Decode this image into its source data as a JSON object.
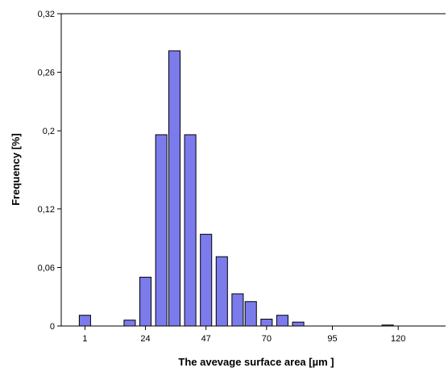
{
  "chart_data": {
    "type": "bar",
    "xlabel": "The avevage surface area  [µm ]",
    "ylabel": "Frequency  [%]",
    "ylim": [
      0,
      0.32
    ],
    "xlim": [
      -8,
      138
    ],
    "y_ticks": [
      0,
      0.06,
      0.12,
      0.2,
      0.26,
      0.32
    ],
    "y_tick_labels": [
      "0",
      "0,06",
      "0,12",
      "0,2",
      "0,26",
      "0,32"
    ],
    "x_ticks": [
      1,
      24,
      47,
      70,
      95,
      120
    ],
    "x_tick_labels": [
      "1",
      "24",
      "47",
      "70",
      "95",
      "120"
    ],
    "bar_width": 4.3,
    "x": [
      1,
      12,
      18,
      24,
      30,
      35,
      41,
      47,
      53,
      59,
      64,
      70,
      76,
      82,
      116
    ],
    "values": [
      0.011,
      0.0,
      0.006,
      0.05,
      0.196,
      0.282,
      0.196,
      0.094,
      0.071,
      0.033,
      0.025,
      0.007,
      0.011,
      0.004,
      0.001
    ],
    "extra_bars": [
      {
        "x": 116,
        "value": 0.001
      }
    ],
    "bar_color": "#7b7bec",
    "bar_stroke": "#000000",
    "grid": false,
    "legend": "none"
  }
}
